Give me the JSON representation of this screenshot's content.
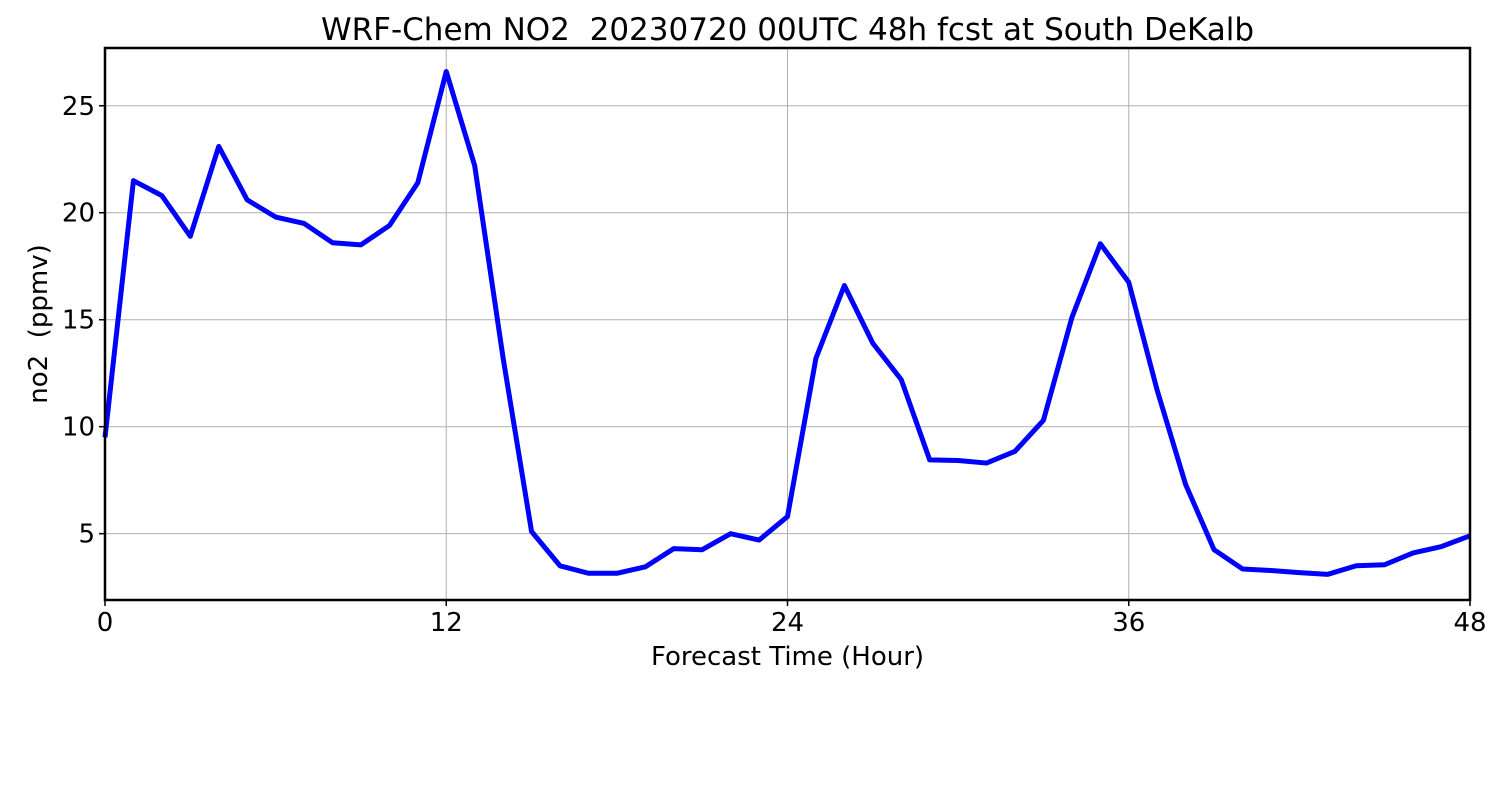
{
  "chart_data": {
    "type": "line",
    "title": "WRF-Chem NO2  20230720 00UTC 48h fcst at South DeKalb",
    "xlabel": "Forecast Time (Hour)",
    "ylabel": "no2  (ppmv)",
    "xlim": [
      0,
      48
    ],
    "ylim": [
      1.9,
      27.7
    ],
    "xticks": [
      0,
      12,
      24,
      36,
      48
    ],
    "yticks": [
      5,
      10,
      15,
      20,
      25
    ],
    "grid": true,
    "series": [
      {
        "color": "#0000ff",
        "x": [
          0,
          1,
          2,
          3,
          4,
          5,
          6,
          7,
          8,
          9,
          10,
          11,
          12,
          13,
          14,
          15,
          16,
          17,
          18,
          19,
          20,
          21,
          22,
          23,
          24,
          25,
          26,
          27,
          28,
          29,
          30,
          31,
          32,
          33,
          34,
          35,
          36,
          37,
          38,
          39,
          40,
          41,
          42,
          43,
          44,
          45,
          46,
          47,
          48
        ],
        "values": [
          9.5,
          21.5,
          20.8,
          18.9,
          23.1,
          20.6,
          19.8,
          19.5,
          18.6,
          18.5,
          19.4,
          21.4,
          26.6,
          22.2,
          13.2,
          5.1,
          3.5,
          3.15,
          3.15,
          3.45,
          4.3,
          4.25,
          5.0,
          4.7,
          5.8,
          13.2,
          16.6,
          13.9,
          12.2,
          8.45,
          8.42,
          8.3,
          8.85,
          10.3,
          15.1,
          18.55,
          16.75,
          11.7,
          7.3,
          4.25,
          3.35,
          3.28,
          3.18,
          3.1,
          3.5,
          3.55,
          4.1,
          4.4,
          4.9
        ]
      }
    ]
  }
}
